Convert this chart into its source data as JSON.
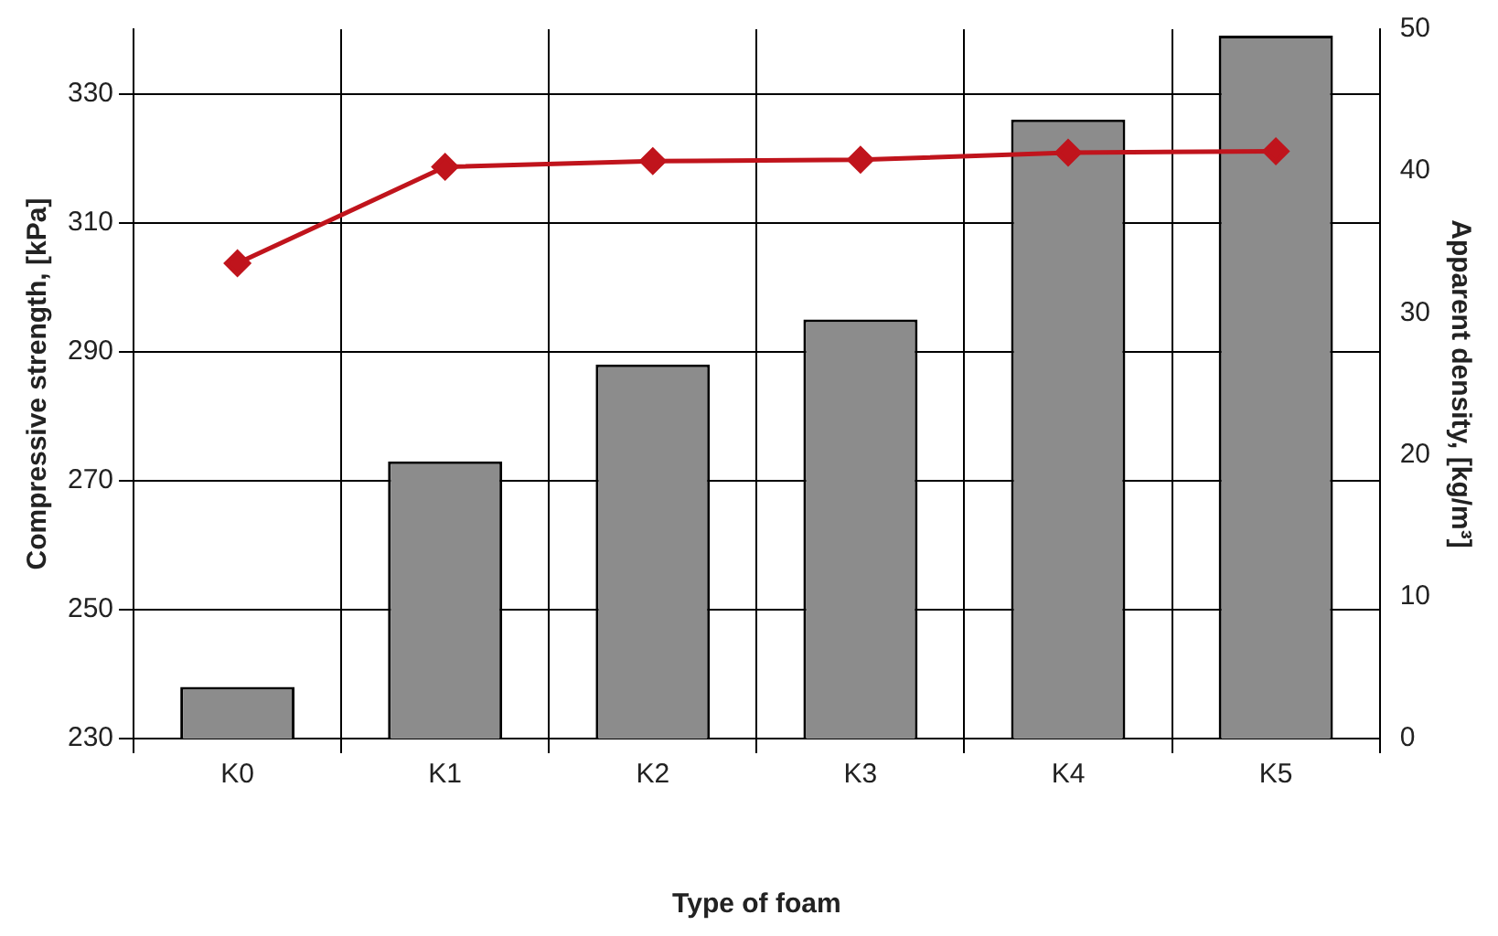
{
  "chart_data": {
    "type": "bar",
    "xlabel": "Type of foam",
    "ylabel": "Compressive strength, [kPa]",
    "y2label": "Apparent density, [kg/m³]",
    "categories": [
      "K0",
      "K1",
      "K2",
      "K3",
      "K4",
      "K5"
    ],
    "series": [
      {
        "color": "#8c8c8c",
        "values": [
          238,
          273,
          288,
          295,
          326,
          339
        ]
      },
      {
        "type": "line",
        "axis": "y2",
        "color": "#c0141c",
        "marker": "diamond",
        "values": [
          33.5,
          40.3,
          40.7,
          40.8,
          41.3,
          41.4
        ]
      }
    ],
    "ylim": [
      230,
      340
    ],
    "yticks": [
      230,
      250,
      270,
      290,
      310,
      330
    ],
    "y2lim": [
      0,
      50
    ],
    "y2ticks": [
      0,
      10,
      20,
      30,
      40,
      50
    ],
    "grid": true,
    "legend": false
  }
}
